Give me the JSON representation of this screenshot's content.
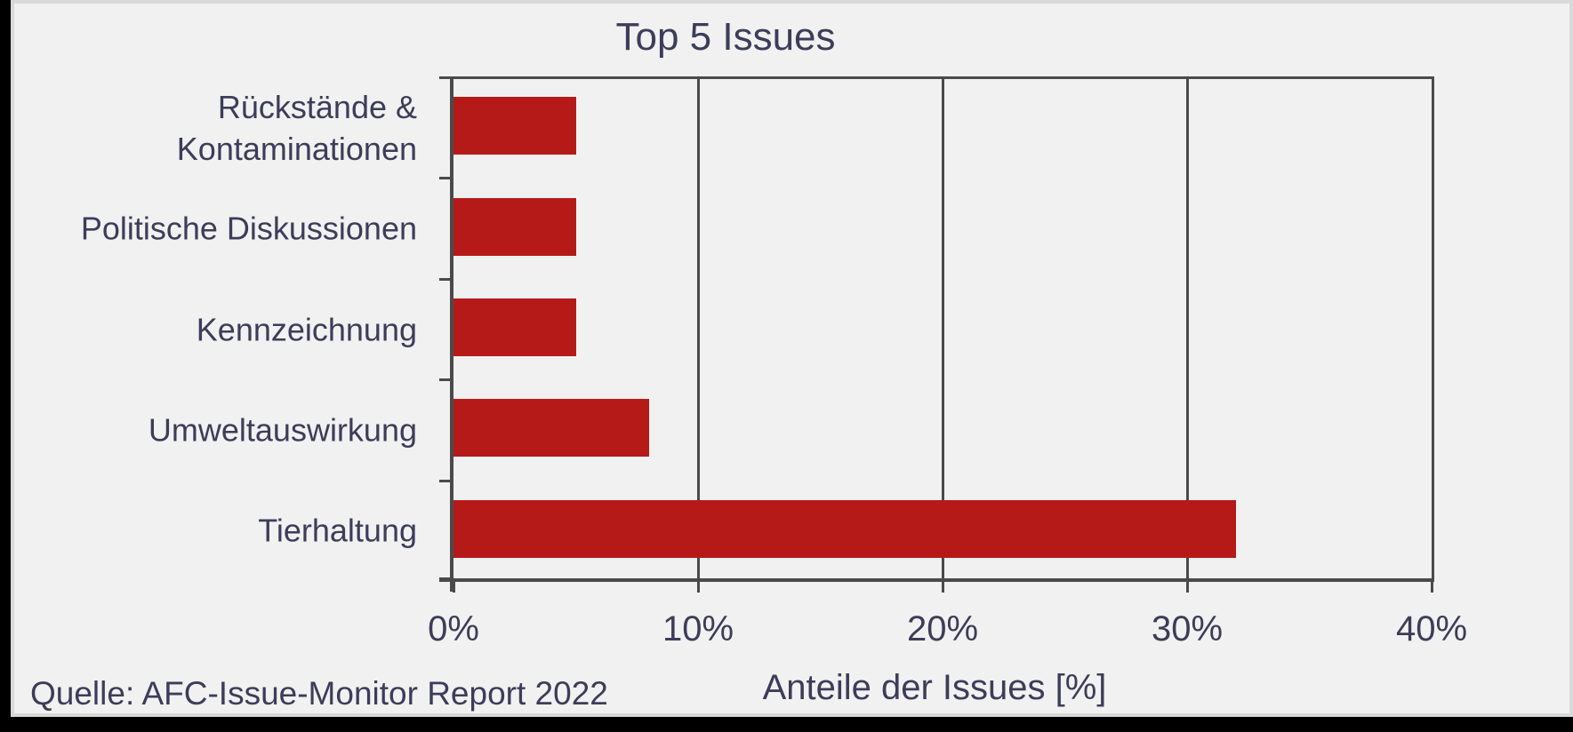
{
  "chart_data": {
    "type": "bar",
    "orientation": "horizontal",
    "title": "Top 5 Issues",
    "categories": [
      "Rückstände & Kontaminationen",
      "Politische Diskussionen",
      "Kennzeichnung",
      "Umweltauswirkung",
      "Tierhaltung"
    ],
    "values": [
      5,
      5,
      5,
      8,
      32
    ],
    "unit": "%",
    "xlabel": "Anteile der Issues [%]",
    "xlim": [
      0,
      40
    ],
    "xtick_labels": [
      "0%",
      "10%",
      "20%",
      "30%",
      "40%"
    ],
    "xtick_values": [
      0,
      10,
      20,
      30,
      40
    ],
    "grid": true,
    "legend": false,
    "bar_color": "#B61A18",
    "axis_color": "#4A4A4A",
    "text_color": "#3D3C59",
    "background_color": "#F1F1F1",
    "border_color": "#D9D9D9",
    "source": "Quelle: AFC-Issue-Monitor Report 2022"
  }
}
